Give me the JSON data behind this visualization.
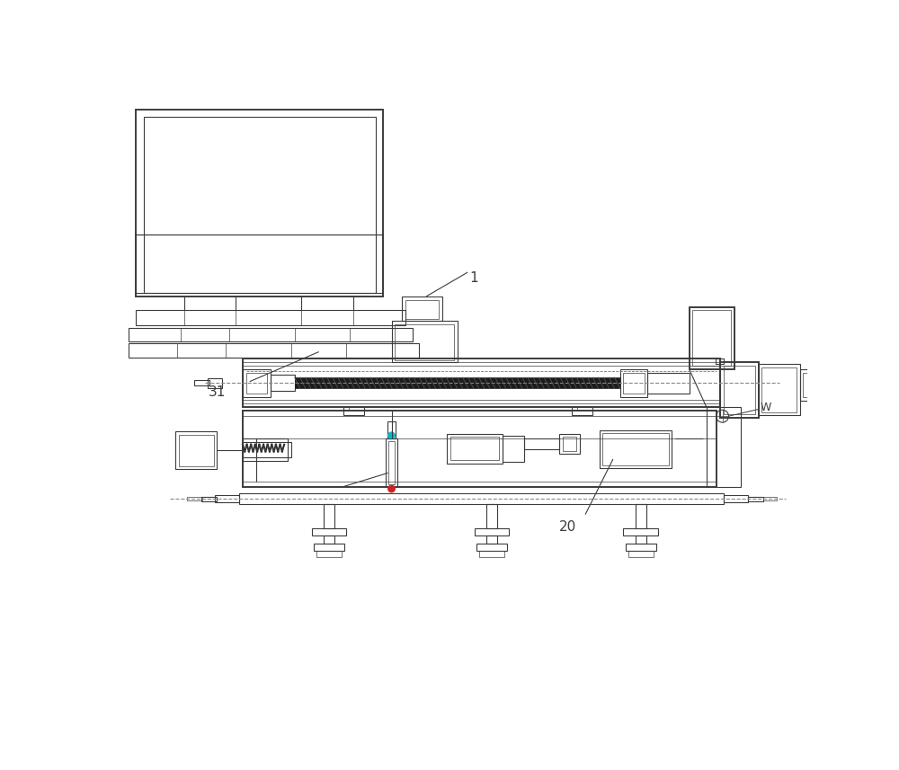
{
  "bg_color": "#ffffff",
  "lc": "#3c3c3c",
  "lw": 0.8,
  "tlw": 1.4,
  "slw": 0.5,
  "label_1": "1",
  "label_20": "20",
  "label_31": "31",
  "label_w": "W",
  "figsize": [
    10.0,
    8.57
  ],
  "dpi": 100
}
